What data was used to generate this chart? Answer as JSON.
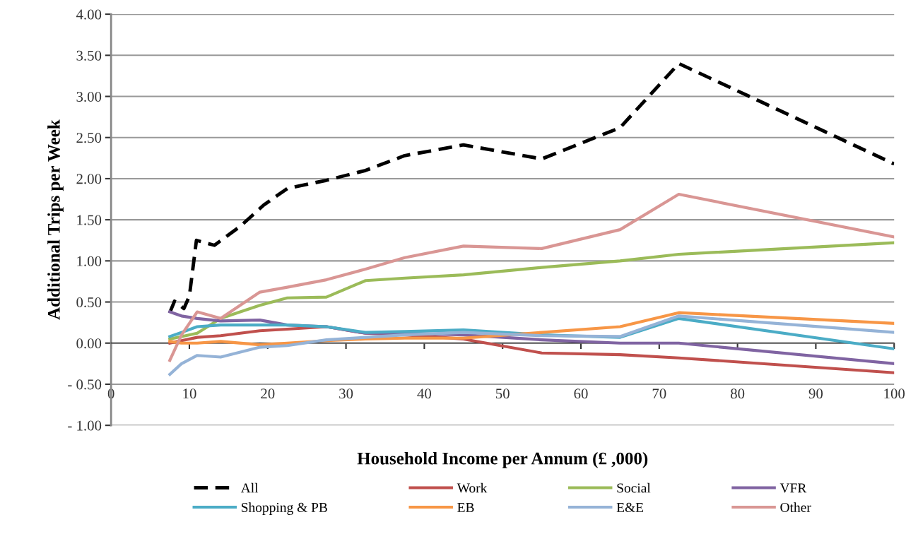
{
  "chart_data": {
    "type": "line",
    "xlabel": "Household Income per Annum (£ ,000)",
    "ylabel": "Additional Trips per Week",
    "x": [
      7.5,
      9,
      11,
      14,
      19,
      22.5,
      27.5,
      32.5,
      37.5,
      45,
      55,
      65,
      72.5,
      100
    ],
    "series": [
      {
        "name": "All",
        "color": "#000000",
        "line_style": "dashed",
        "x": [
          7.5,
          8.1,
          9.3,
          10,
          10.9,
          13.2,
          16.5,
          19.5,
          22.5,
          27.5,
          32.5,
          37.5,
          45,
          55,
          65,
          72.5,
          100
        ],
        "values": [
          0.37,
          0.51,
          0.42,
          0.57,
          1.25,
          1.19,
          1.42,
          1.68,
          1.88,
          1.98,
          2.1,
          2.28,
          2.41,
          2.24,
          2.62,
          3.4,
          2.18
        ]
      },
      {
        "name": "Work",
        "color": "#c0504d",
        "values": [
          0.0,
          0.03,
          0.07,
          0.09,
          0.15,
          0.17,
          0.2,
          0.12,
          0.1,
          0.05,
          -0.12,
          -0.14,
          -0.18,
          -0.36
        ]
      },
      {
        "name": "Social",
        "color": "#9bbb59",
        "values": [
          0.05,
          0.08,
          0.12,
          0.3,
          0.46,
          0.55,
          0.56,
          0.76,
          0.79,
          0.83,
          0.92,
          1.0,
          1.08,
          1.22
        ]
      },
      {
        "name": "VFR",
        "color": "#8064a2",
        "values": [
          0.38,
          0.33,
          0.3,
          0.27,
          0.28,
          0.22,
          0.2,
          0.12,
          0.12,
          0.1,
          0.04,
          0.0,
          0.0,
          -0.25
        ]
      },
      {
        "name": "Shopping & PB",
        "color": "#4bacc6",
        "values": [
          0.08,
          0.13,
          0.2,
          0.22,
          0.22,
          0.22,
          0.2,
          0.13,
          0.14,
          0.16,
          0.1,
          0.07,
          0.3,
          -0.07
        ]
      },
      {
        "name": "EB",
        "color": "#f79646",
        "values": [
          0.02,
          0.0,
          0.0,
          0.02,
          -0.02,
          0.0,
          0.03,
          0.05,
          0.06,
          0.06,
          0.13,
          0.2,
          0.37,
          0.24
        ]
      },
      {
        "name": "E&E",
        "color": "#95b3d7",
        "values": [
          -0.38,
          -0.25,
          -0.15,
          -0.17,
          -0.05,
          -0.03,
          0.04,
          0.07,
          0.1,
          0.13,
          0.09,
          0.08,
          0.33,
          0.13
        ]
      },
      {
        "name": "Other",
        "color": "#d99694",
        "values": [
          -0.21,
          0.1,
          0.38,
          0.3,
          0.62,
          0.68,
          0.77,
          0.9,
          1.04,
          1.18,
          1.15,
          1.38,
          1.81,
          1.29
        ]
      }
    ],
    "xlim": [
      0,
      100
    ],
    "xticks": [
      0,
      10,
      20,
      30,
      40,
      50,
      60,
      70,
      80,
      90,
      100
    ],
    "ylim": [
      -1,
      4
    ],
    "yticks": [
      {
        "value": -1,
        "label": "- 1.00"
      },
      {
        "value": -0.5,
        "label": "- 0.50"
      },
      {
        "value": 0,
        "label": "0.00"
      },
      {
        "value": 0.5,
        "label": "0.50"
      },
      {
        "value": 1,
        "label": "1.00"
      },
      {
        "value": 1.5,
        "label": "1.50"
      },
      {
        "value": 2,
        "label": "2.00"
      },
      {
        "value": 2.5,
        "label": "2.50"
      },
      {
        "value": 3,
        "label": "3.00"
      },
      {
        "value": 3.5,
        "label": "3.50"
      },
      {
        "value": 4,
        "label": "4.00"
      }
    ],
    "grid": "y",
    "legend": "bottom",
    "marker": "none",
    "line_style": "solid"
  }
}
